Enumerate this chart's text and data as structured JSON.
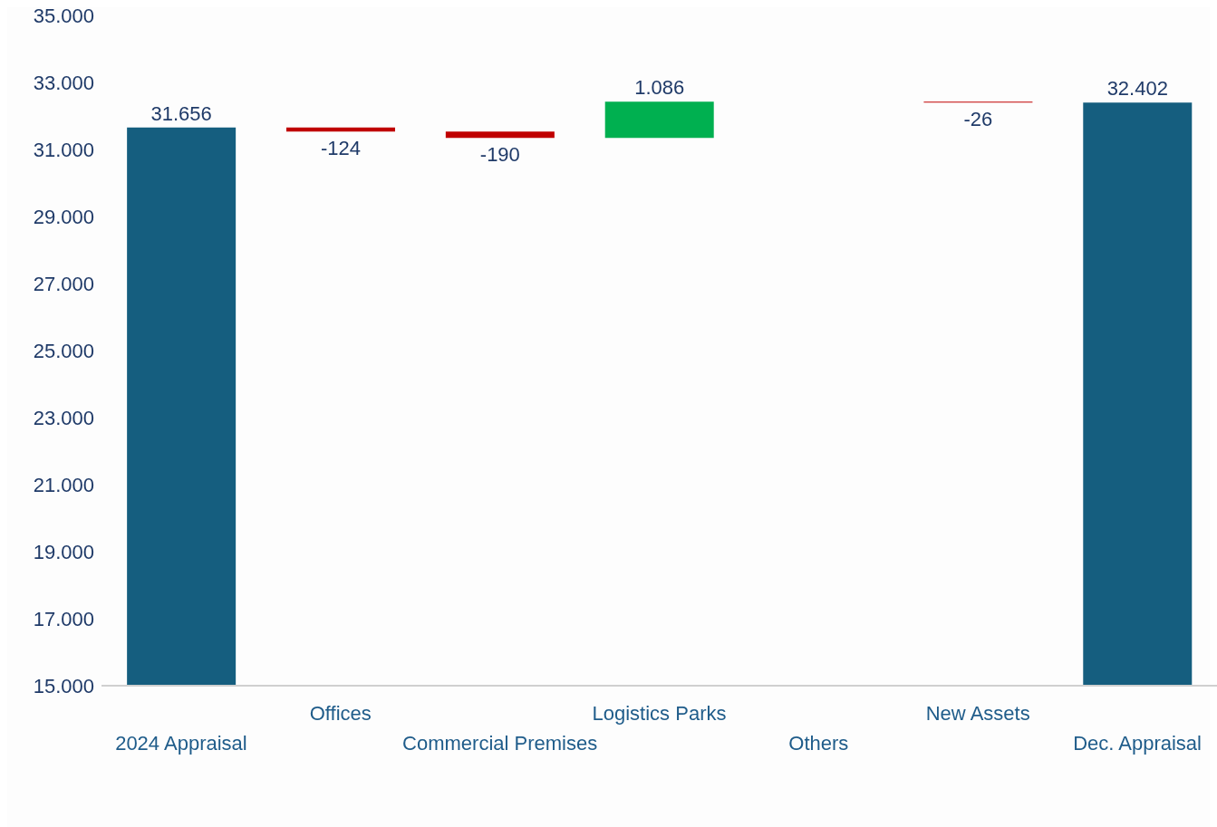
{
  "chart_data": {
    "type": "bar",
    "categories": [
      "2024 Appraisal",
      "Offices",
      "Commercial Premises",
      "Logistics Parks",
      "Others",
      "New Assets",
      "Dec. Appraisal"
    ],
    "values": [
      31656,
      -124,
      -190,
      1086,
      null,
      -26,
      32402
    ],
    "base": [
      null,
      31656,
      31532,
      31342,
      null,
      32428,
      null
    ],
    "colors": [
      "#155e7f",
      "#c00000",
      "#c00000",
      "#00b050",
      "#155e7f",
      "#c00000",
      "#155e7f"
    ],
    "value_labels": [
      "31.656",
      "-124",
      "-190",
      "1.086",
      null,
      "-26",
      "32.402"
    ],
    "ylim": [
      15000,
      35000
    ],
    "yticks": [
      {
        "value": 15000,
        "label": "15.000"
      },
      {
        "value": 17000,
        "label": "17.000"
      },
      {
        "value": 19000,
        "label": "19.000"
      },
      {
        "value": 21000,
        "label": "21.000"
      },
      {
        "value": 23000,
        "label": "23.000"
      },
      {
        "value": 25000,
        "label": "25.000"
      },
      {
        "value": 27000,
        "label": "27.000"
      },
      {
        "value": 29000,
        "label": "29.000"
      },
      {
        "value": 31000,
        "label": "31.000"
      },
      {
        "value": 33000,
        "label": "33.000"
      },
      {
        "value": 35000,
        "label": "35.000"
      }
    ]
  }
}
